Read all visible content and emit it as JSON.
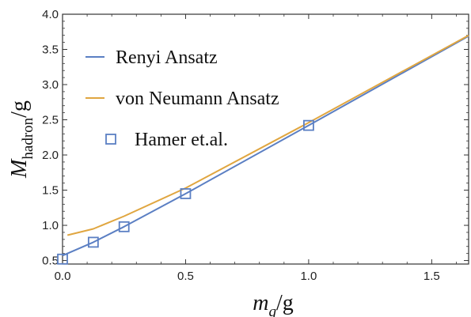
{
  "chart_data": {
    "type": "line",
    "xlim": [
      0.0,
      1.65
    ],
    "ylim": [
      0.45,
      4.0
    ],
    "x_ticks": [
      "0.0",
      "0.5",
      "1.0",
      "1.5"
    ],
    "y_ticks": [
      "0.5",
      "1.0",
      "1.5",
      "2.0",
      "2.5",
      "3.0",
      "3.5",
      "4.0"
    ],
    "xlabel": "m_q/g",
    "ylabel": "M_hadron/g",
    "xlabel_main": "m",
    "xlabel_sub": "q",
    "xlabel_tail": "/g",
    "ylabel_main": "M",
    "ylabel_sub": "hadron",
    "ylabel_tail": "/g",
    "legend_position": "upper-left",
    "grid": false,
    "series": [
      {
        "name": "Renyi Ansatz",
        "kind": "line",
        "color": "#5b7fc3",
        "x": [
          0.0,
          0.125,
          0.25,
          0.5,
          1.0,
          1.65
        ],
        "y": [
          0.57,
          0.76,
          0.98,
          1.45,
          2.42,
          3.69
        ]
      },
      {
        "name": "von Neumann Ansatz",
        "kind": "line",
        "color": "#e0a640",
        "x": [
          0.02,
          0.125,
          0.25,
          0.5,
          1.0,
          1.65
        ],
        "y": [
          0.86,
          0.95,
          1.13,
          1.53,
          2.46,
          3.7
        ]
      },
      {
        "name": "Hamer et.al.",
        "kind": "marker",
        "marker": "open-square",
        "color": "#5b7fc3",
        "x": [
          0.0,
          0.125,
          0.25,
          0.5,
          1.0
        ],
        "y": [
          0.52,
          0.76,
          0.98,
          1.45,
          2.42
        ]
      }
    ]
  }
}
